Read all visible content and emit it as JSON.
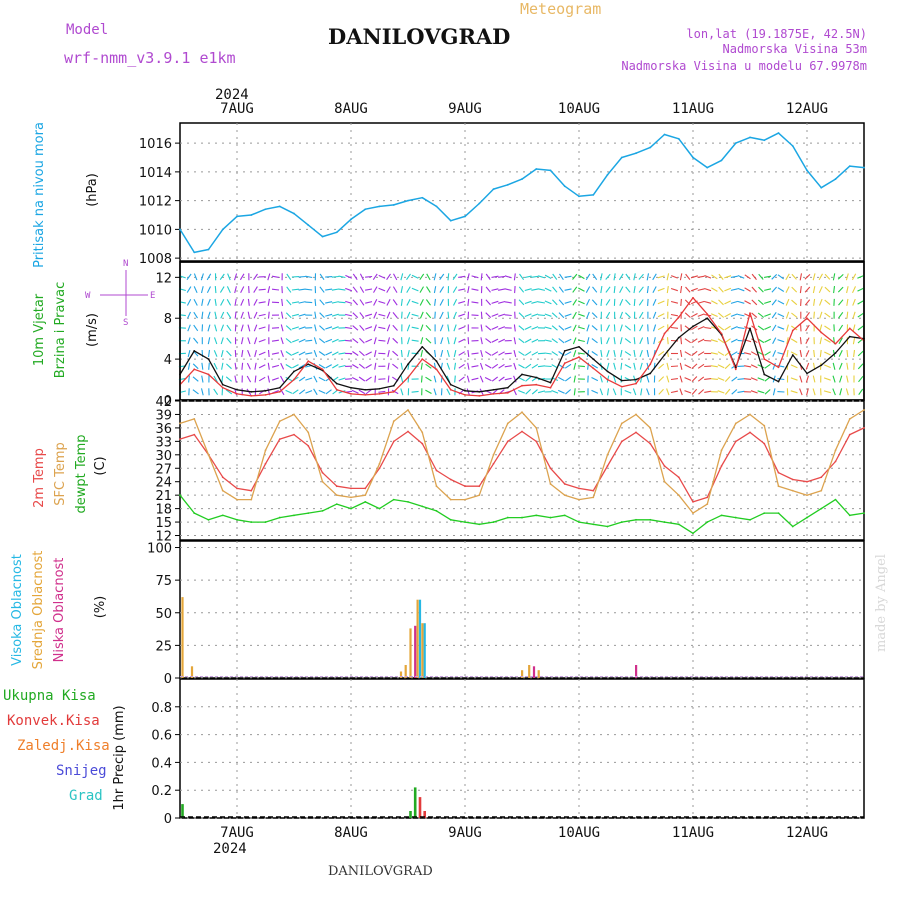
{
  "header": {
    "model_label": "Model",
    "model_name": "wrf-nmm_v3.9.1  e1km",
    "product": "Meteogram",
    "city": "DANILOVGRAD",
    "lonlat": "lon,lat (19.1875E, 42.5N)",
    "elev": "Nadmorska Visina 53m",
    "elev_model": "Nadmorska Visina u modelu 67.9978m",
    "footer_city": "DANILOVGRAD",
    "watermark": "made by Angel"
  },
  "colors": {
    "pressure": "#1ba6e3",
    "temp2m": "#e84a4a",
    "sfc": "#dca34f",
    "dew": "#22cc22",
    "total": "#22aa22",
    "konv": "#e23b3b",
    "zaledj": "#ef7f2a",
    "snow": "#4b4bd8",
    "grad": "#2bc4c4",
    "high": "#26b8e4",
    "mid": "#e4a63a",
    "low": "#d0308c",
    "label_purple": "#b04ad0"
  },
  "chart_data": [
    {
      "type": "line",
      "panel": "pressure",
      "ylabel_title": "Pritisak na nivou mora",
      "ylabel_unit": "(hPa)",
      "year": "2024",
      "days": [
        "7AUG",
        "8AUG",
        "9AUG",
        "10AUG",
        "11AUG",
        "12AUG"
      ],
      "ylim": [
        1007.8,
        1017.4
      ],
      "yticks": [
        1008,
        1010,
        1012,
        1014,
        1016
      ],
      "x_hours": [
        0,
        3,
        6,
        9,
        12,
        15,
        18,
        21,
        24,
        27,
        30,
        33,
        36,
        39,
        42,
        45,
        48,
        51,
        54,
        57,
        60,
        63,
        66,
        69,
        72,
        75,
        78,
        81,
        84,
        87,
        90,
        93,
        96,
        99,
        102,
        105,
        108,
        111,
        114,
        117,
        120,
        123,
        126,
        129,
        132,
        135,
        138,
        141,
        144
      ],
      "series": [
        {
          "values": [
            1010.0,
            1008.4,
            1008.6,
            1010.0,
            1010.9,
            1011.0,
            1011.4,
            1011.6,
            1011.1,
            1010.3,
            1009.5,
            1009.8,
            1010.7,
            1011.4,
            1011.6,
            1011.7,
            1012.0,
            1012.2,
            1011.6,
            1010.6,
            1010.9,
            1011.8,
            1012.8,
            1013.1,
            1013.5,
            1014.2,
            1014.1,
            1013.0,
            1012.3,
            1012.4,
            1013.8,
            1015.0,
            1015.3,
            1015.7,
            1016.6,
            1016.3,
            1015.0,
            1014.3,
            1014.8,
            1016.0,
            1016.4,
            1016.2,
            1016.7,
            1015.8,
            1014.1,
            1012.9,
            1013.5,
            1014.4,
            1014.3
          ]
        }
      ]
    },
    {
      "type": "line",
      "panel": "wind",
      "ylabel_title": "10m Vjetar",
      "ylabel_title2": "Brzina i Pravac",
      "ylabel_unit": "(m/s)",
      "compass": [
        "N",
        "E",
        "S",
        "W"
      ],
      "ylim": [
        0,
        13.5
      ],
      "yticks": [
        0,
        4,
        8,
        12
      ],
      "x_hours": [
        0,
        3,
        6,
        9,
        12,
        15,
        18,
        21,
        24,
        27,
        30,
        33,
        36,
        39,
        42,
        45,
        48,
        51,
        54,
        57,
        60,
        63,
        66,
        69,
        72,
        75,
        78,
        81,
        84,
        87,
        90,
        93,
        96,
        99,
        102,
        105,
        108,
        111,
        114,
        117,
        120,
        123,
        126,
        129,
        132,
        135,
        138,
        141,
        144
      ],
      "series": [
        {
          "values": [
            2.5,
            4.8,
            4.0,
            1.5,
            1.0,
            0.8,
            0.9,
            1.2,
            2.8,
            3.5,
            2.9,
            1.6,
            1.2,
            1.0,
            1.1,
            1.4,
            3.5,
            5.2,
            3.8,
            1.5,
            0.9,
            0.8,
            1.0,
            1.2,
            2.5,
            2.2,
            1.7,
            4.8,
            5.2,
            4.0,
            2.8,
            1.9,
            2.0,
            2.6,
            4.4,
            6.1,
            7.2,
            8.0,
            6.4,
            3.2,
            7.0,
            2.5,
            1.8,
            4.4,
            2.6,
            3.4,
            4.6,
            6.2,
            6.0
          ]
        },
        {
          "values": [
            1.5,
            3.0,
            2.5,
            1.2,
            0.6,
            0.4,
            0.5,
            0.8,
            2.0,
            3.8,
            3.0,
            1.0,
            0.6,
            0.5,
            0.6,
            0.8,
            2.2,
            4.0,
            3.0,
            1.0,
            0.5,
            0.4,
            0.6,
            0.7,
            1.4,
            1.5,
            1.2,
            3.6,
            4.2,
            3.1,
            2.0,
            1.3,
            1.6,
            3.5,
            6.5,
            8.1,
            10.0,
            8.4,
            6.5,
            3.0,
            8.5,
            4.0,
            3.2,
            6.8,
            8.0,
            6.6,
            5.5,
            7.0,
            5.8
          ]
        }
      ]
    },
    {
      "type": "line",
      "panel": "temperature",
      "ylabel_names": [
        "2m Temp",
        "SFC Temp",
        "dewpt Temp"
      ],
      "ylabel_unit": "(C)",
      "ylim": [
        11,
        42
      ],
      "yticks": [
        12,
        15,
        18,
        21,
        24,
        27,
        30,
        33,
        36,
        39,
        42
      ],
      "x_hours": [
        0,
        3,
        6,
        9,
        12,
        15,
        18,
        21,
        24,
        27,
        30,
        33,
        36,
        39,
        42,
        45,
        48,
        51,
        54,
        57,
        60,
        63,
        66,
        69,
        72,
        75,
        78,
        81,
        84,
        87,
        90,
        93,
        96,
        99,
        102,
        105,
        108,
        111,
        114,
        117,
        120,
        123,
        126,
        129,
        132,
        135,
        138,
        141,
        144
      ],
      "series": [
        {
          "name": "2m Temp",
          "values": [
            33.5,
            34.5,
            30.0,
            25.0,
            22.5,
            22.0,
            28.0,
            33.5,
            34.5,
            32.0,
            26.0,
            23.0,
            22.5,
            22.5,
            27.0,
            33.0,
            35.2,
            32.5,
            26.5,
            24.5,
            23.0,
            23.0,
            28.0,
            33.0,
            35.2,
            33.0,
            27.0,
            23.5,
            22.5,
            22.0,
            27.5,
            33.0,
            35.0,
            32.5,
            27.5,
            25.0,
            19.5,
            20.5,
            27.5,
            33.0,
            35.0,
            32.5,
            26.0,
            24.5,
            24.0,
            25.0,
            28.5,
            34.5,
            36.0
          ]
        },
        {
          "name": "SFC Temp",
          "values": [
            37.0,
            38.0,
            30.0,
            22.0,
            20.0,
            20.0,
            31.0,
            37.5,
            39.0,
            35.0,
            24.0,
            21.0,
            20.5,
            21.0,
            28.0,
            37.5,
            40.0,
            35.0,
            23.0,
            20.0,
            20.0,
            21.0,
            30.0,
            37.0,
            39.5,
            36.0,
            23.5,
            21.0,
            20.0,
            20.5,
            30.0,
            37.0,
            39.0,
            36.0,
            24.0,
            21.0,
            17.0,
            19.0,
            31.0,
            37.0,
            39.0,
            36.5,
            23.0,
            22.0,
            21.0,
            22.0,
            31.0,
            38.0,
            40.0
          ]
        },
        {
          "name": "dewpt Temp",
          "values": [
            21.0,
            17.0,
            15.5,
            16.5,
            15.5,
            15.0,
            15.0,
            16.0,
            16.5,
            17.0,
            17.5,
            19.0,
            18.0,
            19.5,
            18.0,
            20.0,
            19.5,
            18.5,
            17.5,
            15.5,
            15.0,
            14.5,
            15.0,
            16.0,
            16.0,
            16.5,
            16.0,
            16.5,
            15.0,
            14.5,
            14.0,
            15.0,
            15.5,
            15.5,
            15.0,
            14.5,
            12.5,
            15.0,
            16.5,
            16.0,
            15.5,
            17.0,
            17.0,
            14.0,
            16.0,
            18.0,
            20.0,
            16.5,
            17.0
          ]
        }
      ]
    },
    {
      "type": "bar",
      "panel": "clouds",
      "ylabel_names": [
        "Visoka Oblacnost",
        "Srednja Oblacnost",
        "Niska Oblacnost"
      ],
      "ylabel_unit": "(%)",
      "ylim": [
        0,
        105
      ],
      "yticks": [
        0,
        25,
        50,
        75,
        100
      ],
      "bars": [
        {
          "hour": 0.5,
          "series": "mid",
          "value": 62
        },
        {
          "hour": 2.5,
          "series": "mid",
          "value": 9
        },
        {
          "hour": 46.5,
          "series": "mid",
          "value": 5
        },
        {
          "hour": 47.5,
          "series": "mid",
          "value": 10
        },
        {
          "hour": 48.5,
          "series": "mid",
          "value": 38
        },
        {
          "hour": 49.5,
          "series": "low",
          "value": 40
        },
        {
          "hour": 50.0,
          "series": "mid",
          "value": 60
        },
        {
          "hour": 50.5,
          "series": "high",
          "value": 60
        },
        {
          "hour": 51.5,
          "series": "high",
          "value": 42
        },
        {
          "hour": 51.0,
          "series": "mid",
          "value": 42
        },
        {
          "hour": 72.0,
          "series": "mid",
          "value": 6
        },
        {
          "hour": 73.5,
          "series": "mid",
          "value": 10
        },
        {
          "hour": 74.5,
          "series": "low",
          "value": 9
        },
        {
          "hour": 75.5,
          "series": "mid",
          "value": 6
        },
        {
          "hour": 96.0,
          "series": "low",
          "value": 10
        }
      ]
    },
    {
      "type": "bar",
      "panel": "precip",
      "ylabel_names": [
        "Ukupna  Kisa",
        "Konvek.Kisa",
        "Zaledj.Kisa",
        "Snijeg",
        "Grad"
      ],
      "ylabel_unit": "1hr Precip (mm)",
      "ylim": [
        0,
        1.0
      ],
      "yticks": [
        0,
        0.2,
        0.4,
        0.6,
        0.8
      ],
      "bars": [
        {
          "hour": 0.5,
          "series": "total",
          "value": 0.1
        },
        {
          "hour": 48.5,
          "series": "total",
          "value": 0.05
        },
        {
          "hour": 49.5,
          "series": "total",
          "value": 0.22
        },
        {
          "hour": 50.5,
          "series": "konv",
          "value": 0.15
        },
        {
          "hour": 51.5,
          "series": "konv",
          "value": 0.05
        }
      ]
    }
  ]
}
